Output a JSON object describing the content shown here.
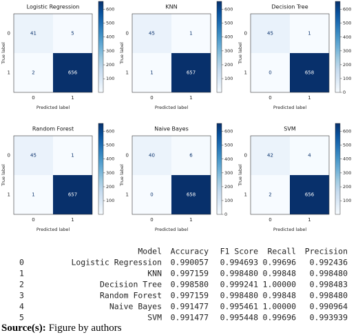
{
  "chart_data": [
    {
      "type": "heatmap",
      "title": "Logistic Regression",
      "xlabel": "Predicted label",
      "ylabel": "True label",
      "x_categories": [
        "0",
        "1"
      ],
      "y_categories": [
        "0",
        "1"
      ],
      "values": [
        [
          41,
          5
        ],
        [
          2,
          656
        ]
      ],
      "colormap": "Blues",
      "clim": [
        2,
        656
      ],
      "cticks": [
        100,
        200,
        300,
        400,
        500,
        600
      ]
    },
    {
      "type": "heatmap",
      "title": "KNN",
      "xlabel": "Predicted label",
      "ylabel": "True label",
      "x_categories": [
        "0",
        "1"
      ],
      "y_categories": [
        "0",
        "1"
      ],
      "values": [
        [
          45,
          1
        ],
        [
          1,
          657
        ]
      ],
      "colormap": "Blues",
      "clim": [
        1,
        657
      ],
      "cticks": [
        100,
        200,
        300,
        400,
        500,
        600
      ]
    },
    {
      "type": "heatmap",
      "title": "Decision Tree",
      "xlabel": "Predicted label",
      "ylabel": "True label",
      "x_categories": [
        "0",
        "1"
      ],
      "y_categories": [
        "0",
        "1"
      ],
      "values": [
        [
          45,
          1
        ],
        [
          0,
          658
        ]
      ],
      "colormap": "Blues",
      "clim": [
        0,
        658
      ],
      "cticks": [
        0,
        100,
        200,
        300,
        400,
        500,
        600
      ]
    },
    {
      "type": "heatmap",
      "title": "Random Forest",
      "xlabel": "Predicted label",
      "ylabel": "True label",
      "x_categories": [
        "0",
        "1"
      ],
      "y_categories": [
        "0",
        "1"
      ],
      "values": [
        [
          45,
          1
        ],
        [
          1,
          657
        ]
      ],
      "colormap": "Blues",
      "clim": [
        1,
        657
      ],
      "cticks": [
        100,
        200,
        300,
        400,
        500,
        600
      ]
    },
    {
      "type": "heatmap",
      "title": "Naive Bayes",
      "xlabel": "Predicted label",
      "ylabel": "True label",
      "x_categories": [
        "0",
        "1"
      ],
      "y_categories": [
        "0",
        "1"
      ],
      "values": [
        [
          40,
          6
        ],
        [
          0,
          658
        ]
      ],
      "colormap": "Blues",
      "clim": [
        0,
        658
      ],
      "cticks": [
        0,
        100,
        200,
        300,
        400,
        500,
        600
      ]
    },
    {
      "type": "heatmap",
      "title": "SVM",
      "xlabel": "Predicted label",
      "ylabel": "True label",
      "x_categories": [
        "0",
        "1"
      ],
      "y_categories": [
        "0",
        "1"
      ],
      "values": [
        [
          42,
          4
        ],
        [
          2,
          656
        ]
      ],
      "colormap": "Blues",
      "clim": [
        2,
        656
      ],
      "cticks": [
        100,
        200,
        300,
        400,
        500,
        600
      ]
    }
  ],
  "table": {
    "header": [
      "Model",
      "Accuracy",
      "F1 Score",
      "Recall",
      "Precision"
    ],
    "index": [
      "0",
      "1",
      "2",
      "3",
      "4",
      "5"
    ],
    "rows": [
      [
        "Logistic Regression",
        "0.990057",
        "0.994693",
        "0.99696",
        "0.992436"
      ],
      [
        "KNN",
        "0.997159",
        "0.998480",
        "0.99848",
        "0.998480"
      ],
      [
        "Decision Tree",
        "0.998580",
        "0.999241",
        "1.00000",
        "0.998483"
      ],
      [
        "Random Forest",
        "0.997159",
        "0.998480",
        "0.99848",
        "0.998480"
      ],
      [
        "Naive Bayes",
        "0.991477",
        "0.995461",
        "1.00000",
        "0.990964"
      ],
      [
        "SVM",
        "0.991477",
        "0.995448",
        "0.99696",
        "0.993939"
      ]
    ]
  },
  "source": {
    "label": "Source(s):",
    "text": "Figure by authors"
  }
}
